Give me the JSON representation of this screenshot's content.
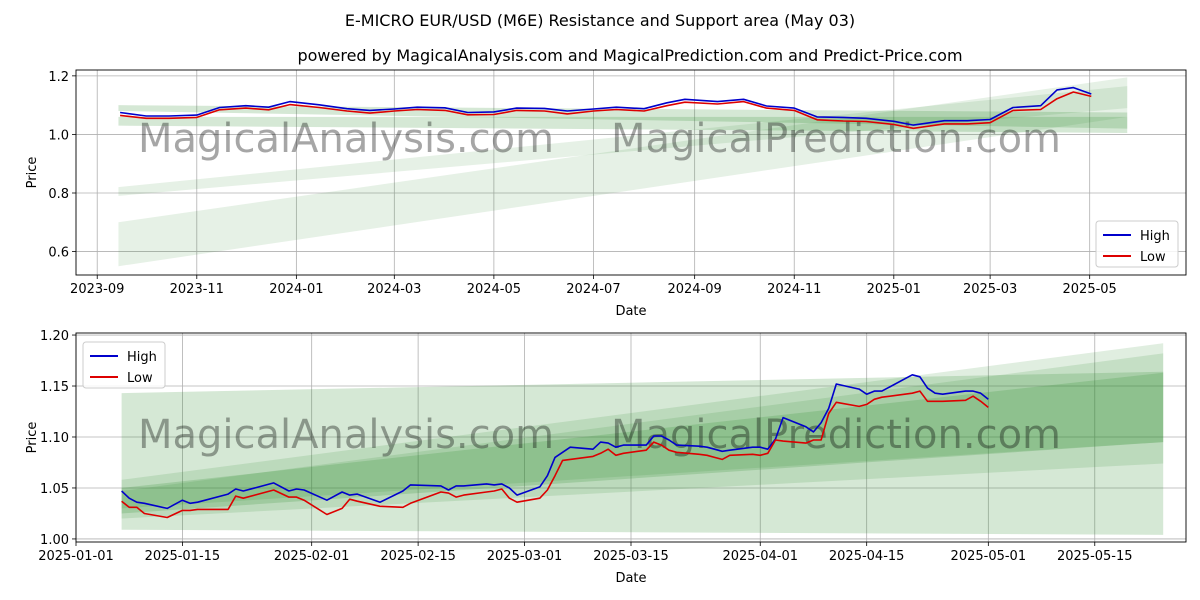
{
  "title": "E-MICRO EUR/USD (M6E) Resistance and Support area (May 03)",
  "subtitle": "powered by MagicalAnalysis.com and MagicalPrediction.com and Predict-Price.com",
  "watermarks": [
    "MagicalAnalysis.com",
    "MagicalPrediction.com"
  ],
  "colors": {
    "high": "#0000cc",
    "low": "#dd0000",
    "band": "#2e8b2e",
    "grid": "#b0b0b0"
  },
  "chart_data": [
    {
      "type": "line",
      "xlabel": "Date",
      "ylabel": "Price",
      "xlim": [
        "2023-08-19",
        "2025-06-29"
      ],
      "ylim": [
        0.52,
        1.22
      ],
      "xticks": [
        "2023-09",
        "2023-11",
        "2024-01",
        "2024-03",
        "2024-05",
        "2024-07",
        "2024-09",
        "2024-11",
        "2025-01",
        "2025-03",
        "2025-05"
      ],
      "xtick_dates": [
        "2023-09-01",
        "2023-11-01",
        "2024-01-01",
        "2024-03-01",
        "2024-05-01",
        "2024-07-01",
        "2024-09-01",
        "2024-11-01",
        "2025-01-01",
        "2025-03-01",
        "2025-05-01"
      ],
      "yticks": [
        "0.6",
        "0.8",
        "1.0",
        "1.2"
      ],
      "ytick_values": [
        0.6,
        0.8,
        1.0,
        1.2
      ],
      "grid": true,
      "legend": "lower-right",
      "series": [
        {
          "name": "High",
          "x": [
            "2023-09-15",
            "2023-10-01",
            "2023-10-15",
            "2023-11-01",
            "2023-11-15",
            "2023-12-01",
            "2023-12-15",
            "2023-12-28",
            "2024-01-15",
            "2024-02-01",
            "2024-02-15",
            "2024-03-01",
            "2024-03-15",
            "2024-04-01",
            "2024-04-15",
            "2024-05-01",
            "2024-05-15",
            "2024-06-01",
            "2024-06-15",
            "2024-07-01",
            "2024-07-15",
            "2024-08-01",
            "2024-08-15",
            "2024-08-26",
            "2024-09-15",
            "2024-10-01",
            "2024-10-15",
            "2024-11-01",
            "2024-11-15",
            "2024-12-01",
            "2024-12-15",
            "2025-01-01",
            "2025-01-13",
            "2025-02-01",
            "2025-02-15",
            "2025-03-01",
            "2025-03-15",
            "2025-04-01",
            "2025-04-11",
            "2025-04-21",
            "2025-05-02"
          ],
          "values": [
            1.075,
            1.063,
            1.063,
            1.066,
            1.092,
            1.098,
            1.093,
            1.112,
            1.101,
            1.088,
            1.082,
            1.087,
            1.093,
            1.091,
            1.075,
            1.077,
            1.09,
            1.089,
            1.08,
            1.087,
            1.093,
            1.088,
            1.108,
            1.12,
            1.112,
            1.12,
            1.097,
            1.09,
            1.06,
            1.058,
            1.055,
            1.045,
            1.032,
            1.047,
            1.047,
            1.051,
            1.092,
            1.098,
            1.152,
            1.16,
            1.138
          ]
        },
        {
          "name": "Low",
          "x": [
            "2023-09-15",
            "2023-10-01",
            "2023-10-15",
            "2023-11-01",
            "2023-11-15",
            "2023-12-01",
            "2023-12-15",
            "2023-12-28",
            "2024-01-15",
            "2024-02-01",
            "2024-02-15",
            "2024-03-01",
            "2024-03-15",
            "2024-04-01",
            "2024-04-15",
            "2024-05-01",
            "2024-05-15",
            "2024-06-01",
            "2024-06-15",
            "2024-07-01",
            "2024-07-15",
            "2024-08-01",
            "2024-08-15",
            "2024-08-26",
            "2024-09-15",
            "2024-10-01",
            "2024-10-15",
            "2024-11-01",
            "2024-11-15",
            "2024-12-01",
            "2024-12-15",
            "2025-01-01",
            "2025-01-13",
            "2025-02-01",
            "2025-02-15",
            "2025-03-01",
            "2025-03-15",
            "2025-04-01",
            "2025-04-11",
            "2025-04-21",
            "2025-05-02"
          ],
          "values": [
            1.065,
            1.055,
            1.055,
            1.058,
            1.084,
            1.09,
            1.084,
            1.102,
            1.092,
            1.08,
            1.073,
            1.08,
            1.085,
            1.082,
            1.067,
            1.068,
            1.082,
            1.08,
            1.07,
            1.08,
            1.085,
            1.08,
            1.098,
            1.11,
            1.104,
            1.112,
            1.09,
            1.082,
            1.05,
            1.046,
            1.044,
            1.034,
            1.021,
            1.036,
            1.036,
            1.04,
            1.082,
            1.085,
            1.122,
            1.145,
            1.13
          ]
        }
      ],
      "bands": [
        {
          "x": [
            "2023-09-14",
            "2025-05-24"
          ],
          "lower": [
            1.08,
            1.02
          ],
          "upper": [
            1.1,
            1.075
          ]
        },
        {
          "x": [
            "2023-09-14",
            "2025-05-24"
          ],
          "lower": [
            0.79,
            1.09
          ],
          "upper": [
            0.82,
            1.165
          ]
        },
        {
          "x": [
            "2023-09-14",
            "2025-05-24"
          ],
          "lower": [
            0.55,
            1.06
          ],
          "upper": [
            0.7,
            1.195
          ]
        },
        {
          "x": [
            "2023-09-14",
            "2025-05-24"
          ],
          "lower": [
            1.03,
            1.005
          ],
          "upper": [
            1.06,
            1.06
          ]
        }
      ]
    },
    {
      "type": "line",
      "xlabel": "Date",
      "ylabel": "Price",
      "xlim": [
        "2025-01-01",
        "2025-05-27"
      ],
      "ylim": [
        0.997,
        1.202
      ],
      "xticks": [
        "2025-01-01",
        "2025-01-15",
        "2025-02-01",
        "2025-02-15",
        "2025-03-01",
        "2025-03-15",
        "2025-04-01",
        "2025-04-15",
        "2025-05-01",
        "2025-05-15"
      ],
      "xtick_dates": [
        "2025-01-01",
        "2025-01-15",
        "2025-02-01",
        "2025-02-15",
        "2025-03-01",
        "2025-03-15",
        "2025-04-01",
        "2025-04-15",
        "2025-05-01",
        "2025-05-15"
      ],
      "yticks": [
        "1.00",
        "1.05",
        "1.10",
        "1.15",
        "1.20"
      ],
      "ytick_values": [
        1.0,
        1.05,
        1.1,
        1.15,
        1.2
      ],
      "grid": true,
      "legend": "top-left",
      "series": [
        {
          "name": "High",
          "x": [
            "2025-01-07",
            "2025-01-08",
            "2025-01-09",
            "2025-01-10",
            "2025-01-13",
            "2025-01-15",
            "2025-01-16",
            "2025-01-17",
            "2025-01-21",
            "2025-01-22",
            "2025-01-23",
            "2025-01-27",
            "2025-01-29",
            "2025-01-30",
            "2025-01-31",
            "2025-02-03",
            "2025-02-05",
            "2025-02-06",
            "2025-02-07",
            "2025-02-10",
            "2025-02-13",
            "2025-02-14",
            "2025-02-18",
            "2025-02-19",
            "2025-02-20",
            "2025-02-21",
            "2025-02-24",
            "2025-02-25",
            "2025-02-26",
            "2025-02-27",
            "2025-02-28",
            "2025-03-03",
            "2025-03-04",
            "2025-03-05",
            "2025-03-06",
            "2025-03-07",
            "2025-03-10",
            "2025-03-11",
            "2025-03-12",
            "2025-03-13",
            "2025-03-14",
            "2025-03-17",
            "2025-03-18",
            "2025-03-19",
            "2025-03-20",
            "2025-03-21",
            "2025-03-24",
            "2025-03-25",
            "2025-03-26",
            "2025-03-27",
            "2025-03-28",
            "2025-03-31",
            "2025-04-01",
            "2025-04-02",
            "2025-04-03",
            "2025-04-04",
            "2025-04-07",
            "2025-04-08",
            "2025-04-09",
            "2025-04-10",
            "2025-04-11",
            "2025-04-14",
            "2025-04-15",
            "2025-04-16",
            "2025-04-17",
            "2025-04-21",
            "2025-04-22",
            "2025-04-23",
            "2025-04-24",
            "2025-04-25",
            "2025-04-28",
            "2025-04-29",
            "2025-04-30",
            "2025-05-01"
          ],
          "values": [
            1.047,
            1.04,
            1.036,
            1.035,
            1.03,
            1.038,
            1.035,
            1.036,
            1.044,
            1.049,
            1.047,
            1.055,
            1.047,
            1.049,
            1.048,
            1.038,
            1.046,
            1.043,
            1.044,
            1.036,
            1.047,
            1.053,
            1.052,
            1.048,
            1.052,
            1.052,
            1.054,
            1.053,
            1.054,
            1.05,
            1.043,
            1.051,
            1.062,
            1.08,
            1.085,
            1.09,
            1.088,
            1.095,
            1.094,
            1.09,
            1.092,
            1.092,
            1.101,
            1.101,
            1.097,
            1.092,
            1.091,
            1.09,
            1.088,
            1.086,
            1.087,
            1.09,
            1.09,
            1.088,
            1.098,
            1.119,
            1.11,
            1.105,
            1.114,
            1.128,
            1.152,
            1.147,
            1.142,
            1.145,
            1.145,
            1.161,
            1.159,
            1.148,
            1.143,
            1.142,
            1.145,
            1.145,
            1.143,
            1.137
          ]
        },
        {
          "name": "Low",
          "x": [
            "2025-01-07",
            "2025-01-08",
            "2025-01-09",
            "2025-01-10",
            "2025-01-13",
            "2025-01-15",
            "2025-01-16",
            "2025-01-17",
            "2025-01-21",
            "2025-01-22",
            "2025-01-23",
            "2025-01-27",
            "2025-01-29",
            "2025-01-30",
            "2025-01-31",
            "2025-02-03",
            "2025-02-05",
            "2025-02-06",
            "2025-02-07",
            "2025-02-10",
            "2025-02-13",
            "2025-02-14",
            "2025-02-18",
            "2025-02-19",
            "2025-02-20",
            "2025-02-21",
            "2025-02-24",
            "2025-02-25",
            "2025-02-26",
            "2025-02-27",
            "2025-02-28",
            "2025-03-03",
            "2025-03-04",
            "2025-03-05",
            "2025-03-06",
            "2025-03-07",
            "2025-03-10",
            "2025-03-11",
            "2025-03-12",
            "2025-03-13",
            "2025-03-14",
            "2025-03-17",
            "2025-03-18",
            "2025-03-19",
            "2025-03-20",
            "2025-03-21",
            "2025-03-24",
            "2025-03-25",
            "2025-03-26",
            "2025-03-27",
            "2025-03-28",
            "2025-03-31",
            "2025-04-01",
            "2025-04-02",
            "2025-04-03",
            "2025-04-04",
            "2025-04-07",
            "2025-04-08",
            "2025-04-09",
            "2025-04-10",
            "2025-04-11",
            "2025-04-14",
            "2025-04-15",
            "2025-04-16",
            "2025-04-17",
            "2025-04-21",
            "2025-04-22",
            "2025-04-23",
            "2025-04-24",
            "2025-04-25",
            "2025-04-28",
            "2025-04-29",
            "2025-04-30",
            "2025-05-01"
          ],
          "values": [
            1.037,
            1.031,
            1.031,
            1.025,
            1.021,
            1.028,
            1.028,
            1.029,
            1.029,
            1.042,
            1.04,
            1.048,
            1.041,
            1.041,
            1.038,
            1.024,
            1.03,
            1.039,
            1.037,
            1.032,
            1.031,
            1.035,
            1.046,
            1.045,
            1.041,
            1.043,
            1.046,
            1.047,
            1.049,
            1.04,
            1.036,
            1.04,
            1.048,
            1.062,
            1.077,
            1.078,
            1.081,
            1.084,
            1.088,
            1.082,
            1.084,
            1.087,
            1.095,
            1.092,
            1.087,
            1.085,
            1.083,
            1.082,
            1.08,
            1.078,
            1.082,
            1.083,
            1.082,
            1.084,
            1.097,
            1.096,
            1.094,
            1.097,
            1.097,
            1.123,
            1.134,
            1.13,
            1.132,
            1.137,
            1.139,
            1.143,
            1.145,
            1.135,
            1.135,
            1.135,
            1.136,
            1.14,
            1.135,
            1.129
          ]
        }
      ],
      "bands": [
        {
          "x": [
            "2025-01-07",
            "2025-05-24"
          ],
          "lower": [
            1.025,
            1.095
          ],
          "upper": [
            1.143,
            1.164
          ]
        },
        {
          "x": [
            "2025-01-07",
            "2025-05-24"
          ],
          "lower": [
            1.009,
            1.004
          ],
          "upper": [
            1.05,
            1.163
          ]
        },
        {
          "x": [
            "2025-01-07",
            "2025-05-24"
          ],
          "lower": [
            1.02,
            1.074
          ],
          "upper": [
            1.058,
            1.192
          ]
        },
        {
          "x": [
            "2025-01-07",
            "2025-05-24"
          ],
          "lower": [
            1.03,
            1.095
          ],
          "upper": [
            1.047,
            1.182
          ]
        }
      ]
    }
  ]
}
